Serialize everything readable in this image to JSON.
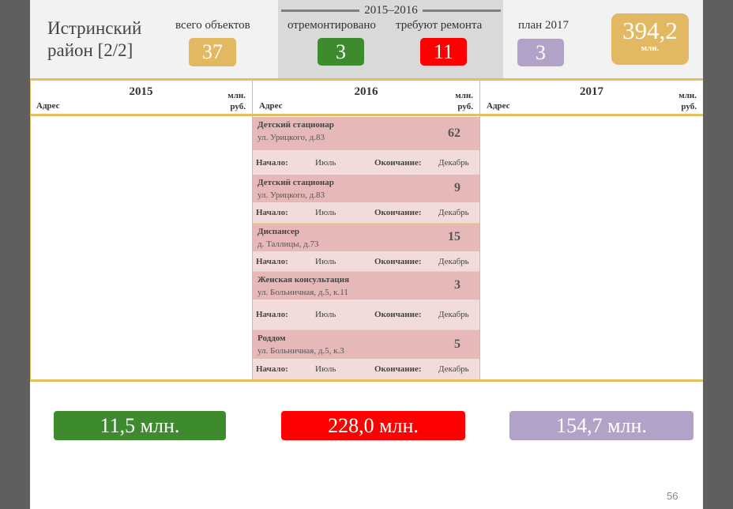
{
  "title": "Истринский район [2/2]",
  "summary": {
    "total_label": "всего объектов",
    "total_value": "37",
    "period_label": "2015–2016",
    "repaired_label": "отремонтировано",
    "repaired_value": "3",
    "needs_label": "требуют ремонта",
    "needs_value": "11",
    "plan_label": "план 2017",
    "plan_value": "3",
    "budget_value": "394,2",
    "budget_unit": "млн."
  },
  "columns": [
    {
      "year": "2015",
      "addr": "Адрес",
      "unit1": "млн.",
      "unit2": "руб."
    },
    {
      "year": "2016",
      "addr": "Адрес",
      "unit1": "млн.",
      "unit2": "руб."
    },
    {
      "year": "2017",
      "addr": "Адрес",
      "unit1": "млн.",
      "unit2": "руб."
    }
  ],
  "objects_2016": [
    {
      "name": "Детский стационар",
      "address": "ул. Урицкого, д.83",
      "value": "62",
      "start_label": "Начало:",
      "start": "Июль",
      "end_label": "Окончание:",
      "end": "Декабрь"
    },
    {
      "name": "Детский стационар",
      "address": "ул. Урицкого, д.83",
      "value": "9",
      "start_label": "Начало:",
      "start": "Июль",
      "end_label": "Окончание:",
      "end": "Декабрь"
    },
    {
      "name": "Диспансер",
      "address": "д. Таллицы, д.73",
      "value": "15",
      "start_label": "Начало:",
      "start": "Июль",
      "end_label": "Окончание:",
      "end": "Декабрь"
    },
    {
      "name": "Женская консультация",
      "address": "ул. Больничная, д.5, к.11",
      "value": "3",
      "start_label": "Начало:",
      "start": "Июль",
      "end_label": "Окончание:",
      "end": "Декабрь"
    },
    {
      "name": "Роддом",
      "address": "ул. Больничная, д.5, к.3",
      "value": "5",
      "start_label": "Начало:",
      "start": "Июль",
      "end_label": "Окончание:",
      "end": "Декабрь"
    }
  ],
  "totals": [
    "11,5 млн.",
    "228,0 млн.",
    "154,7 млн."
  ],
  "page_number": "56",
  "colors": {
    "gold": "#e3b862",
    "green": "#3e8a2f",
    "red": "#ff0000",
    "purple": "#b3a2c7",
    "object_bg": "#e6b9b8",
    "dates_bg": "#f2dcdb"
  }
}
